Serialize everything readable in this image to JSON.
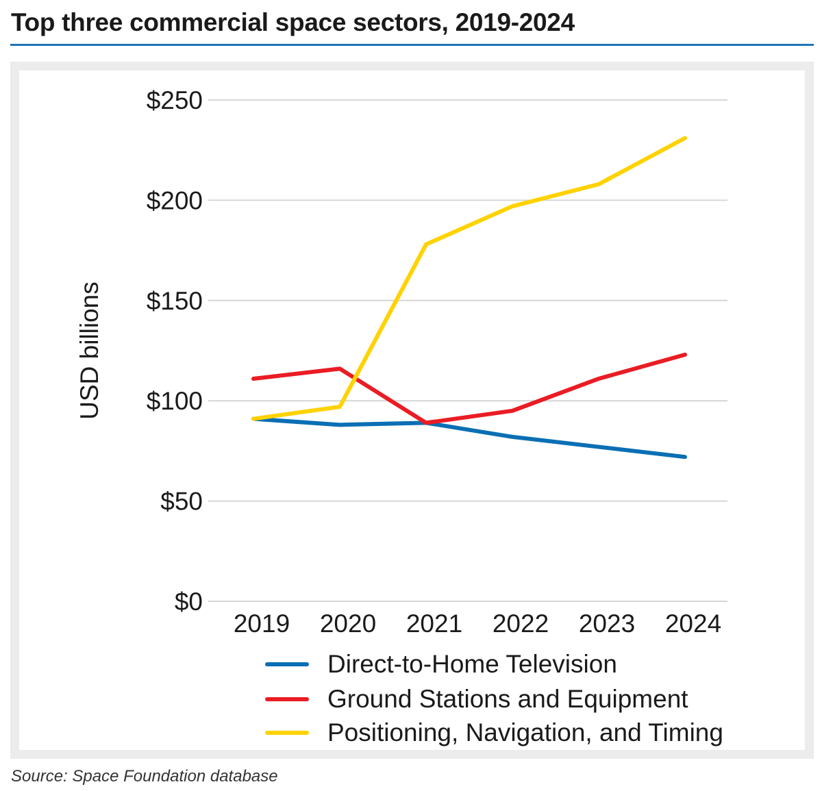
{
  "title": "Top three commercial space sectors, 2019-2024",
  "source": "Source:  Space Foundation database",
  "chart_data": {
    "type": "line",
    "title": "Top three commercial space sectors, 2019-2024",
    "xlabel": "",
    "ylabel": "USD billions",
    "categories": [
      "2019",
      "2020",
      "2021",
      "2022",
      "2023",
      "2024"
    ],
    "ylim": [
      0,
      250
    ],
    "yticks": [
      0,
      50,
      100,
      150,
      200,
      250
    ],
    "ytick_labels": [
      "$0",
      "$50",
      "$100",
      "$150",
      "$200",
      "$250"
    ],
    "grid": true,
    "legend": "bottom",
    "series": [
      {
        "name": "Direct-to-Home Television",
        "color": "#0a6fb4",
        "values": [
          91,
          88,
          89,
          82,
          77,
          72
        ]
      },
      {
        "name": "Ground Stations and Equipment",
        "color": "#ea1c24",
        "values": [
          111,
          116,
          89,
          95,
          111,
          123
        ]
      },
      {
        "name": "Positioning, Navigation, and Timing",
        "color": "#ffd200",
        "values": [
          91,
          97,
          178,
          197,
          208,
          231
        ]
      }
    ]
  }
}
